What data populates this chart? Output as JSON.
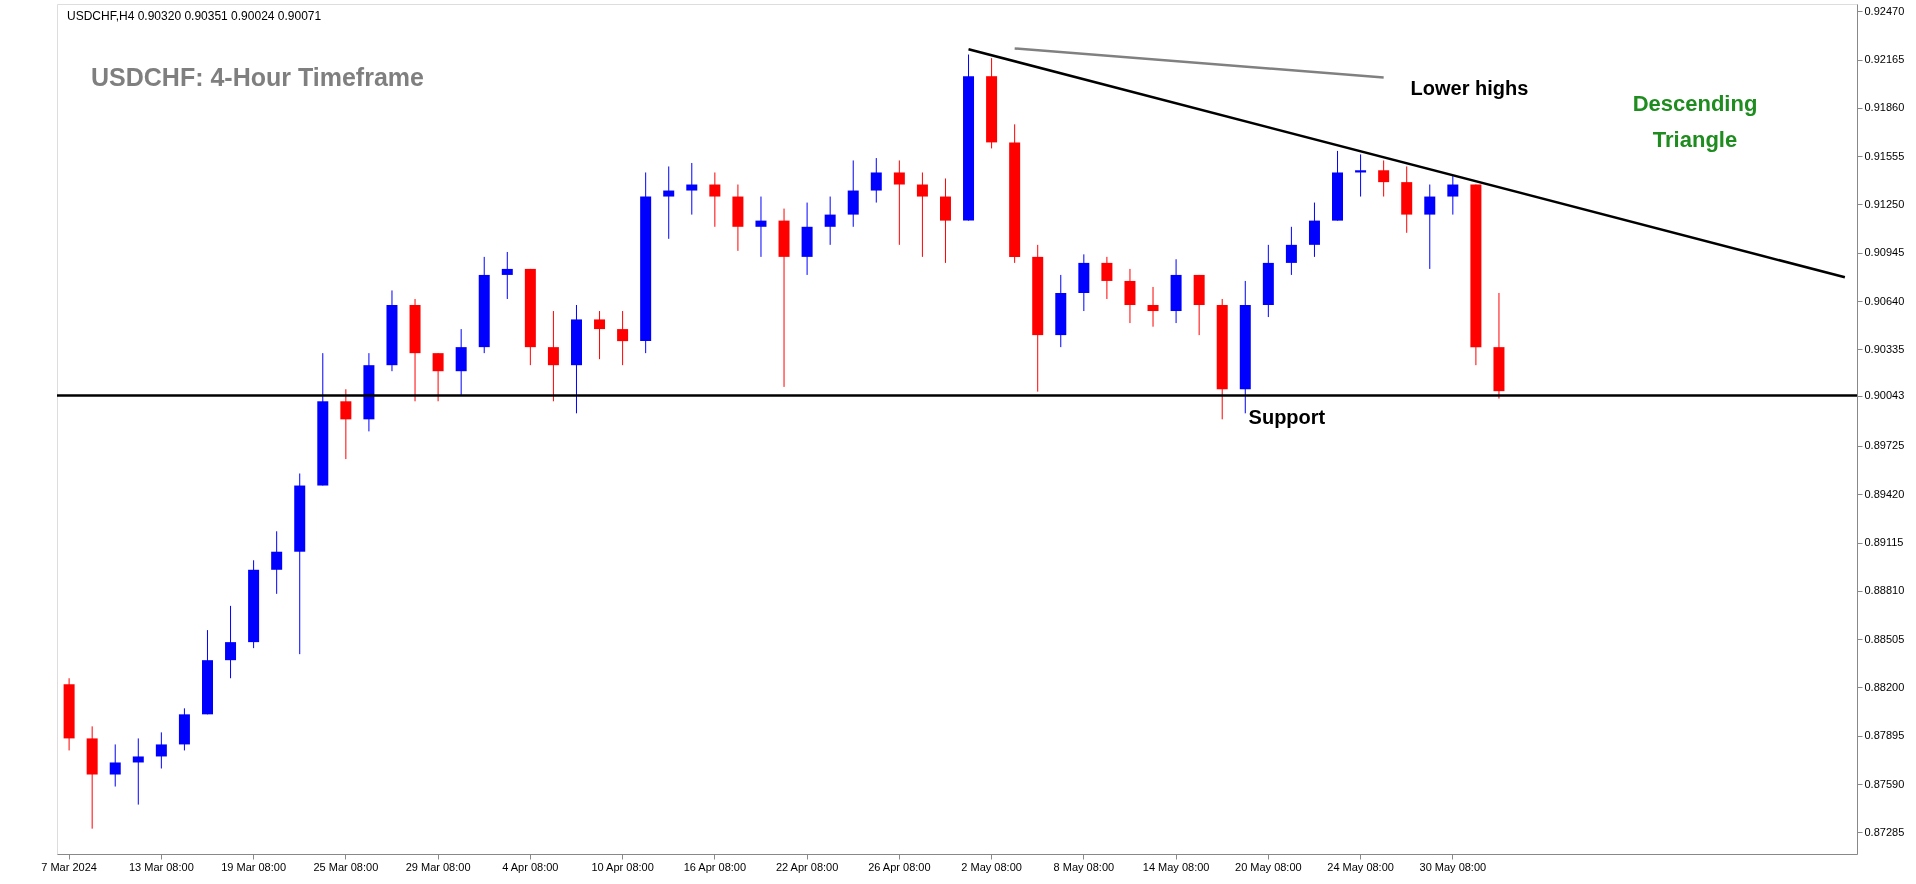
{
  "chart_data": {
    "type": "candlestick",
    "title": "USDCHF: 4-Hour Timeframe",
    "categories": [
      "7 Mar 2024",
      null,
      null,
      null,
      "13 Mar 08:00",
      null,
      null,
      null,
      "19 Mar 08:00",
      null,
      null,
      null,
      "25 Mar 08:00",
      null,
      null,
      null,
      "29 Mar 08:00",
      null,
      null,
      null,
      "4 Apr 08:00",
      null,
      null,
      null,
      "10 Apr 08:00",
      null,
      null,
      null,
      "16 Apr 08:00",
      null,
      null,
      null,
      "22 Apr 08:00",
      null,
      null,
      null,
      "26 Apr 08:00",
      null,
      null,
      null,
      "2 May 08:00",
      null,
      null,
      null,
      "8 May 08:00",
      null,
      null,
      null,
      "14 May 08:00",
      null,
      null,
      null,
      "20 May 08:00",
      null,
      null,
      null,
      "24 May 08:00",
      null,
      null,
      null,
      "30 May 08:00",
      null,
      null,
      null,
      null,
      null,
      null,
      null,
      null,
      null,
      null,
      null,
      null,
      null,
      null,
      null,
      null,
      null
    ],
    "ohlc": [
      [
        0.8822,
        0.88258,
        0.87802,
        0.87878
      ],
      [
        0.87878,
        0.87954,
        0.87308,
        0.8765
      ],
      [
        0.8765,
        0.8784,
        0.87574,
        0.87726
      ],
      [
        0.87726,
        0.87878,
        0.8746,
        0.87764
      ],
      [
        0.87764,
        0.87916,
        0.87688,
        0.8784
      ],
      [
        0.8784,
        0.88068,
        0.87802,
        0.8803
      ],
      [
        0.8803,
        0.88562,
        0.8803,
        0.88372
      ],
      [
        0.88372,
        0.88715,
        0.88258,
        0.88486
      ],
      [
        0.88486,
        0.89003,
        0.88448,
        0.88943
      ],
      [
        0.88943,
        0.89186,
        0.88791,
        0.89057
      ],
      [
        0.89057,
        0.89551,
        0.8841,
        0.89475
      ],
      [
        0.89475,
        0.90311,
        0.89475,
        0.90007
      ],
      [
        0.90007,
        0.90083,
        0.89642,
        0.89893
      ],
      [
        0.89893,
        0.90311,
        0.89817,
        0.90235
      ],
      [
        0.90235,
        0.90707,
        0.90197,
        0.90615
      ],
      [
        0.90615,
        0.90653,
        0.90007,
        0.90311
      ],
      [
        0.90311,
        0.90311,
        0.90007,
        0.90197
      ],
      [
        0.90197,
        0.90463,
        0.90045,
        0.90349
      ],
      [
        0.90349,
        0.90919,
        0.90311,
        0.90805
      ],
      [
        0.90805,
        0.9095,
        0.90653,
        0.90843
      ],
      [
        0.90843,
        0.90843,
        0.90235,
        0.90349
      ],
      [
        0.90349,
        0.90577,
        0.90007,
        0.90235
      ],
      [
        0.90235,
        0.90615,
        0.89931,
        0.90524
      ],
      [
        0.90524,
        0.90577,
        0.90273,
        0.90463
      ],
      [
        0.90463,
        0.90577,
        0.90235,
        0.90387
      ],
      [
        0.90387,
        0.91452,
        0.90311,
        0.913
      ],
      [
        0.913,
        0.9149,
        0.91033,
        0.91338
      ],
      [
        0.91338,
        0.91512,
        0.91186,
        0.91376
      ],
      [
        0.91376,
        0.91452,
        0.91109,
        0.913
      ],
      [
        0.913,
        0.91376,
        0.90957,
        0.91109
      ],
      [
        0.91109,
        0.913,
        0.90919,
        0.91148
      ],
      [
        0.91148,
        0.91224,
        0.90098,
        0.90919
      ],
      [
        0.90919,
        0.91262,
        0.90805,
        0.91109
      ],
      [
        0.91109,
        0.913,
        0.90995,
        0.91186
      ],
      [
        0.91186,
        0.91528,
        0.91109,
        0.91338
      ],
      [
        0.91338,
        0.91543,
        0.91262,
        0.91452
      ],
      [
        0.91452,
        0.91528,
        0.90995,
        0.91376
      ],
      [
        0.91376,
        0.91452,
        0.90919,
        0.913
      ],
      [
        0.913,
        0.91414,
        0.90881,
        0.91148
      ],
      [
        0.91148,
        0.92197,
        0.91148,
        0.9206
      ],
      [
        0.9206,
        0.92174,
        0.91604,
        0.91642
      ],
      [
        0.91642,
        0.91756,
        0.90881,
        0.90919
      ],
      [
        0.90919,
        0.90995,
        0.90068,
        0.90425
      ],
      [
        0.90425,
        0.90805,
        0.90349,
        0.90691
      ],
      [
        0.90691,
        0.90935,
        0.90577,
        0.90881
      ],
      [
        0.90881,
        0.90919,
        0.90653,
        0.90767
      ],
      [
        0.90767,
        0.90843,
        0.90501,
        0.90615
      ],
      [
        0.90615,
        0.90729,
        0.90478,
        0.90577
      ],
      [
        0.90577,
        0.90904,
        0.90501,
        0.90805
      ],
      [
        0.90805,
        0.90805,
        0.90425,
        0.90615
      ],
      [
        0.90615,
        0.90653,
        0.89893,
        0.90083
      ],
      [
        0.90083,
        0.90767,
        0.89931,
        0.90615
      ],
      [
        0.90615,
        0.90995,
        0.90539,
        0.90881
      ],
      [
        0.90881,
        0.91109,
        0.90805,
        0.90995
      ],
      [
        0.90995,
        0.91262,
        0.90919,
        0.91148
      ],
      [
        0.91148,
        0.91588,
        0.91148,
        0.91452
      ],
      [
        0.91452,
        0.91566,
        0.913,
        0.91466
      ],
      [
        0.91466,
        0.91528,
        0.913,
        0.91391
      ],
      [
        0.91391,
        0.9149,
        0.91071,
        0.91186
      ],
      [
        0.91186,
        0.91376,
        0.90843,
        0.913
      ],
      [
        0.913,
        0.91429,
        0.91186,
        0.91376
      ],
      [
        0.91376,
        0.91376,
        0.90235,
        0.90349
      ],
      [
        0.90349,
        0.90691,
        0.90024,
        0.90071
      ],
      null,
      null,
      null,
      null,
      null,
      null,
      null,
      null,
      null,
      null,
      null,
      null,
      null,
      null,
      null
    ],
    "colors": [
      "#ff0000",
      "#ff0000",
      "#0000ff",
      "#0000ff",
      "#0000ff",
      "#0000ff",
      "#0000ff",
      "#0000ff",
      "#0000ff",
      "#0000ff",
      "#0000ff",
      "#0000ff",
      "#ff0000",
      "#0000ff",
      "#0000ff",
      "#ff0000",
      "#ff0000",
      "#0000ff",
      "#0000ff",
      "#0000ff",
      "#ff0000",
      "#ff0000",
      "#0000ff",
      "#ff0000",
      "#ff0000",
      "#0000ff",
      "#0000ff",
      "#0000ff",
      "#ff0000",
      "#ff0000",
      "#0000ff",
      "#ff0000",
      "#0000ff",
      "#0000ff",
      "#0000ff",
      "#0000ff",
      "#ff0000",
      "#ff0000",
      "#ff0000",
      "#0000ff",
      "#ff0000",
      "#ff0000",
      "#ff0000",
      "#0000ff",
      "#0000ff",
      "#ff0000",
      "#ff0000",
      "#ff0000",
      "#0000ff",
      "#ff0000",
      "#ff0000",
      "#0000ff",
      "#0000ff",
      "#0000ff",
      "#0000ff",
      "#0000ff",
      "#0000ff",
      "#ff0000",
      "#ff0000",
      "#0000ff",
      "#0000ff",
      "#ff0000",
      "#ff0000",
      null,
      null,
      null,
      null,
      null,
      null,
      null,
      null,
      null,
      null,
      null,
      null,
      null,
      null,
      null
    ],
    "series": [
      {
        "type": "line",
        "color": "#000000",
        "values": [
          null,
          null,
          null,
          null,
          null,
          null,
          null,
          null,
          null,
          null,
          null,
          null,
          null,
          null,
          null,
          null,
          null,
          null,
          null,
          null,
          null,
          null,
          null,
          null,
          null,
          null,
          null,
          null,
          null,
          null,
          null,
          null,
          null,
          null,
          null,
          null,
          null,
          null,
          null,
          0.9223,
          null,
          null,
          null,
          null,
          null,
          null,
          null,
          null,
          null,
          null,
          null,
          null,
          null,
          null,
          null,
          null,
          null,
          null,
          null,
          null,
          null,
          null,
          null,
          null,
          null,
          null,
          null,
          null,
          null,
          null,
          null,
          null,
          null,
          null,
          null,
          null,
          null,
          0.9079
        ]
      },
      {
        "type": "line",
        "color": "#808080",
        "values": [
          null,
          null,
          null,
          null,
          null,
          null,
          null,
          null,
          null,
          null,
          null,
          null,
          null,
          null,
          null,
          null,
          null,
          null,
          null,
          null,
          null,
          null,
          null,
          null,
          null,
          null,
          null,
          null,
          null,
          null,
          null,
          null,
          null,
          null,
          null,
          null,
          null,
          null,
          null,
          null,
          null,
          0.92235,
          null,
          null,
          null,
          null,
          null,
          null,
          null,
          null,
          null,
          null,
          null,
          null,
          null,
          null,
          null,
          0.92052,
          null,
          null,
          null,
          null,
          null,
          null,
          null,
          null,
          null,
          null,
          null,
          null,
          null,
          null,
          null,
          null,
          null,
          null,
          null,
          null
        ]
      }
    ],
    "ylim": [
      0.87148,
      0.92516
    ],
    "yticks": [
      {
        "value": 0.9247,
        "label": "0.92470"
      },
      0.92165,
      {
        "value": 0.9186,
        "label": "0.91860"
      },
      0.91555,
      {
        "value": 0.9125,
        "label": "0.91250"
      },
      0.90945,
      {
        "value": 0.9064,
        "label": "0.90640"
      },
      0.90335,
      0.90043,
      0.89725,
      {
        "value": 0.8942,
        "label": "0.89420"
      },
      0.89115,
      {
        "value": 0.8881,
        "label": "0.88810"
      },
      0.88505,
      {
        "value": 0.882,
        "label": "0.88200"
      },
      0.87895,
      {
        "value": 0.8759,
        "label": "0.87590"
      },
      0.87285
    ],
    "ref_lines": [
      {
        "axis": "y",
        "value": 0.90043,
        "label": "Support",
        "color": "#000000"
      }
    ],
    "annotations": [
      "USDCHF,H4  0.90320 0.90351 0.90024 0.90071",
      "Lower highs",
      "Descending Triangle"
    ],
    "grid": false
  }
}
